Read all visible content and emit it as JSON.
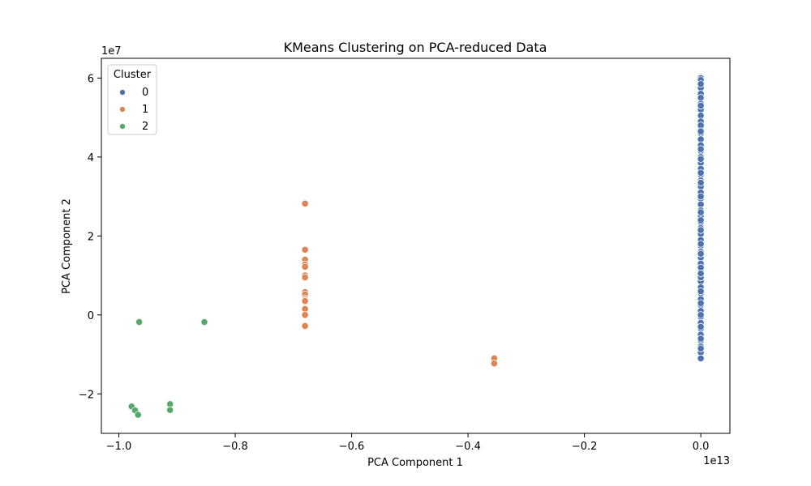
{
  "chart_data": {
    "type": "scatter",
    "title": "KMeans Clustering on PCA-reduced Data",
    "xlabel": "PCA Component 1",
    "ylabel": "PCA Component 2",
    "x_offset_label": "1e13",
    "y_offset_label": "1e7",
    "xlim": [
      -1.03,
      0.05
    ],
    "ylim": [
      -3.0,
      6.5
    ],
    "x_ticks": [
      {
        "value": -1.0,
        "label": "−1.0"
      },
      {
        "value": -0.8,
        "label": "−0.8"
      },
      {
        "value": -0.6,
        "label": "−0.6"
      },
      {
        "value": -0.4,
        "label": "−0.4"
      },
      {
        "value": -0.2,
        "label": "−0.2"
      },
      {
        "value": 0.0,
        "label": "0.0"
      }
    ],
    "y_ticks": [
      {
        "value": -2,
        "label": "−2"
      },
      {
        "value": 0,
        "label": "0"
      },
      {
        "value": 2,
        "label": "2"
      },
      {
        "value": 4,
        "label": "4"
      },
      {
        "value": 6,
        "label": "6"
      }
    ],
    "grid": false,
    "legend": {
      "title": "Cluster",
      "placement": "top-left"
    },
    "series": [
      {
        "name": "0",
        "color": "#4c72b0",
        "x": [
          0.0,
          0.0,
          0.0,
          0.0,
          0.0,
          0.0,
          0.0,
          0.0,
          0.0,
          0.0,
          0.0,
          0.0,
          0.0,
          0.0,
          0.0,
          0.0,
          0.0,
          0.0,
          0.0,
          0.0,
          0.0,
          0.0,
          0.0,
          0.0,
          0.0,
          0.0,
          0.0,
          0.0,
          0.0,
          0.0,
          0.0,
          0.0,
          0.0,
          0.0,
          0.0,
          0.0,
          0.0,
          0.0,
          0.0,
          0.0,
          0.0,
          0.0,
          0.0,
          0.0,
          0.0,
          0.0,
          0.0,
          0.0,
          0.0,
          0.0,
          0.0,
          0.0,
          0.0,
          0.0,
          0.0,
          0.0,
          0.0,
          0.0,
          0.0,
          0.0,
          0.0,
          0.0,
          0.0,
          0.0,
          0.0,
          0.0,
          0.0,
          0.0,
          0.0,
          0.0,
          0.0,
          0.0
        ],
        "y": [
          6.0,
          5.95,
          5.75,
          5.6,
          5.5,
          5.35,
          5.2,
          5.05,
          4.9,
          4.75,
          4.6,
          4.45,
          4.3,
          4.15,
          4.0,
          3.85,
          3.7,
          3.55,
          3.4,
          3.25,
          3.1,
          2.95,
          2.8,
          2.65,
          2.5,
          2.35,
          2.2,
          2.05,
          1.9,
          1.75,
          1.6,
          1.45,
          1.3,
          1.15,
          1.0,
          0.85,
          0.7,
          0.55,
          0.4,
          0.25,
          0.1,
          -0.05,
          -0.2,
          -0.35,
          -0.5,
          -0.65,
          -0.8,
          -0.95,
          -1.1,
          5.3,
          4.8,
          4.2,
          3.6,
          3.0,
          2.4,
          1.8,
          1.2,
          0.6,
          0.0,
          -0.6,
          4.65,
          3.35,
          2.15,
          0.95,
          -0.3,
          5.85,
          2.6,
          1.05,
          -0.85,
          3.95,
          1.55,
          0.3
        ]
      },
      {
        "name": "1",
        "color": "#dd8452",
        "x": [
          -0.68,
          -0.68,
          -0.68,
          -0.68,
          -0.68,
          -0.68,
          -0.68,
          -0.68,
          -0.68,
          -0.68,
          -0.68,
          -0.68,
          -0.68,
          -0.68,
          -0.68,
          -0.355,
          -0.355
        ],
        "y": [
          2.82,
          1.65,
          1.4,
          1.28,
          1.22,
          1.0,
          0.95,
          0.58,
          0.52,
          0.42,
          0.38,
          0.35,
          0.15,
          0.0,
          -0.28,
          -1.1,
          -1.23
        ]
      },
      {
        "name": "2",
        "color": "#55a868",
        "x": [
          -0.965,
          -0.853,
          -0.978,
          -0.972,
          -0.967,
          -0.912,
          -0.912
        ],
        "y": [
          -0.18,
          -0.18,
          -2.32,
          -2.42,
          -2.53,
          -2.26,
          -2.41
        ]
      }
    ]
  }
}
